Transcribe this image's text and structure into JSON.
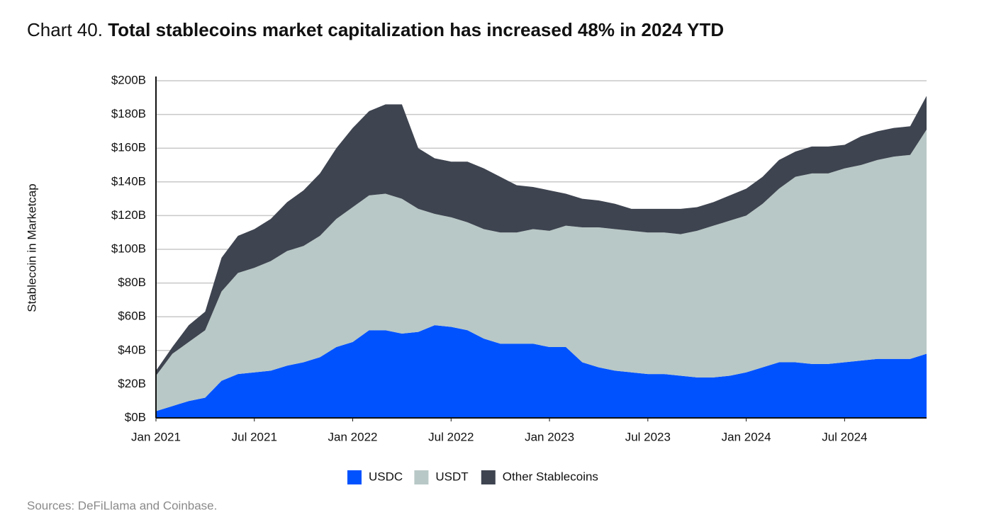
{
  "chart_data": {
    "type": "stacked_area",
    "title_prefix": "Chart 40.",
    "title": "Total stablecoins market capitalization has increased 48% in 2024 YTD",
    "y_label": "Stablecoin in Marketcap",
    "source": "Sources: DeFiLlama and Coinbase.",
    "x": [
      "2021-01",
      "2021-02",
      "2021-03",
      "2021-04",
      "2021-05",
      "2021-06",
      "2021-07",
      "2021-08",
      "2021-09",
      "2021-10",
      "2021-11",
      "2021-12",
      "2022-01",
      "2022-02",
      "2022-03",
      "2022-04",
      "2022-05",
      "2022-06",
      "2022-07",
      "2022-08",
      "2022-09",
      "2022-10",
      "2022-11",
      "2022-12",
      "2023-01",
      "2023-02",
      "2023-03",
      "2023-04",
      "2023-05",
      "2023-06",
      "2023-07",
      "2023-08",
      "2023-09",
      "2023-10",
      "2023-11",
      "2023-12",
      "2024-01",
      "2024-02",
      "2024-03",
      "2024-04",
      "2024-05",
      "2024-06",
      "2024-07",
      "2024-08",
      "2024-09",
      "2024-10",
      "2024-11",
      "2024-12"
    ],
    "xlim": [
      "2021-01",
      "2024-12"
    ],
    "xticks": [
      {
        "value": "2021-01",
        "label": "Jan 2021"
      },
      {
        "value": "2021-07",
        "label": "Jul 2021"
      },
      {
        "value": "2022-01",
        "label": "Jan 2022"
      },
      {
        "value": "2022-07",
        "label": "Jul 2022"
      },
      {
        "value": "2023-01",
        "label": "Jan 2023"
      },
      {
        "value": "2023-07",
        "label": "Jul 2023"
      },
      {
        "value": "2024-01",
        "label": "Jan 2024"
      },
      {
        "value": "2024-07",
        "label": "Jul 2024"
      }
    ],
    "ylim": [
      0,
      200
    ],
    "yticks": [
      {
        "value": 0,
        "label": "$0B"
      },
      {
        "value": 20,
        "label": "$20B"
      },
      {
        "value": 40,
        "label": "$40B"
      },
      {
        "value": 60,
        "label": "$60B"
      },
      {
        "value": 80,
        "label": "$80B"
      },
      {
        "value": 100,
        "label": "$100B"
      },
      {
        "value": 120,
        "label": "$120B"
      },
      {
        "value": 140,
        "label": "$140B"
      },
      {
        "value": 160,
        "label": "$160B"
      },
      {
        "value": 180,
        "label": "$180B"
      },
      {
        "value": 200,
        "label": "$200B"
      }
    ],
    "grid": true,
    "legend": "bottom",
    "series": [
      {
        "name": "USDC",
        "color": "#0052ff",
        "values": [
          4,
          7,
          10,
          12,
          22,
          26,
          27,
          28,
          31,
          33,
          36,
          42,
          45,
          52,
          52,
          50,
          51,
          55,
          54,
          52,
          47,
          44,
          44,
          44,
          42,
          42,
          33,
          30,
          28,
          27,
          26,
          26,
          25,
          24,
          24,
          25,
          27,
          30,
          33,
          33,
          32,
          32,
          33,
          34,
          35,
          35,
          35,
          38
        ]
      },
      {
        "name": "USDT",
        "color": "#b8c8c6",
        "values": [
          21,
          31,
          35,
          40,
          53,
          60,
          62,
          65,
          68,
          69,
          72,
          76,
          80,
          80,
          81,
          80,
          73,
          66,
          65,
          64,
          65,
          66,
          66,
          68,
          69,
          72,
          80,
          83,
          84,
          84,
          84,
          84,
          84,
          87,
          90,
          92,
          93,
          97,
          103,
          110,
          113,
          113,
          115,
          116,
          118,
          120,
          121,
          133
        ]
      },
      {
        "name": "Other Stablecoins",
        "color": "#3e4450",
        "values": [
          3,
          4,
          10,
          11,
          20,
          22,
          23,
          25,
          29,
          33,
          37,
          42,
          47,
          50,
          53,
          56,
          36,
          33,
          33,
          36,
          36,
          33,
          28,
          25,
          24,
          19,
          17,
          16,
          15,
          13,
          14,
          14,
          15,
          14,
          14,
          15,
          16,
          16,
          17,
          15,
          16,
          16,
          14,
          17,
          17,
          17,
          17,
          20
        ]
      }
    ]
  }
}
